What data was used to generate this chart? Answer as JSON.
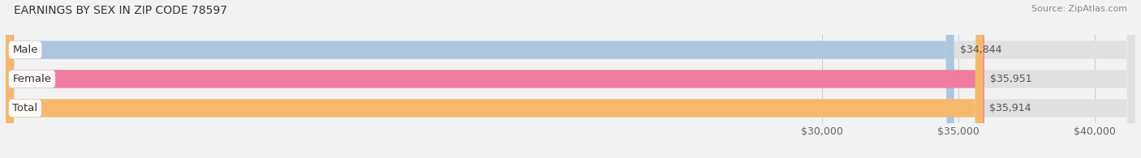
{
  "title": "EARNINGS BY SEX IN ZIP CODE 78597",
  "source": "Source: ZipAtlas.com",
  "categories": [
    "Male",
    "Female",
    "Total"
  ],
  "values": [
    34844,
    35951,
    35914
  ],
  "bar_colors": [
    "#adc6e0",
    "#f07ca0",
    "#f5b96e"
  ],
  "bar_labels": [
    "$34,844",
    "$35,951",
    "$35,914"
  ],
  "xlim": [
    0,
    41500
  ],
  "xticks": [
    30000,
    35000,
    40000
  ],
  "xtick_labels": [
    "$30,000",
    "$35,000",
    "$40,000"
  ],
  "background_color": "#f2f2f2",
  "bar_background_color": "#e0e0e0",
  "title_fontsize": 10,
  "tick_fontsize": 9,
  "bar_label_fontsize": 9,
  "category_fontsize": 9.5,
  "bar_height": 0.62
}
